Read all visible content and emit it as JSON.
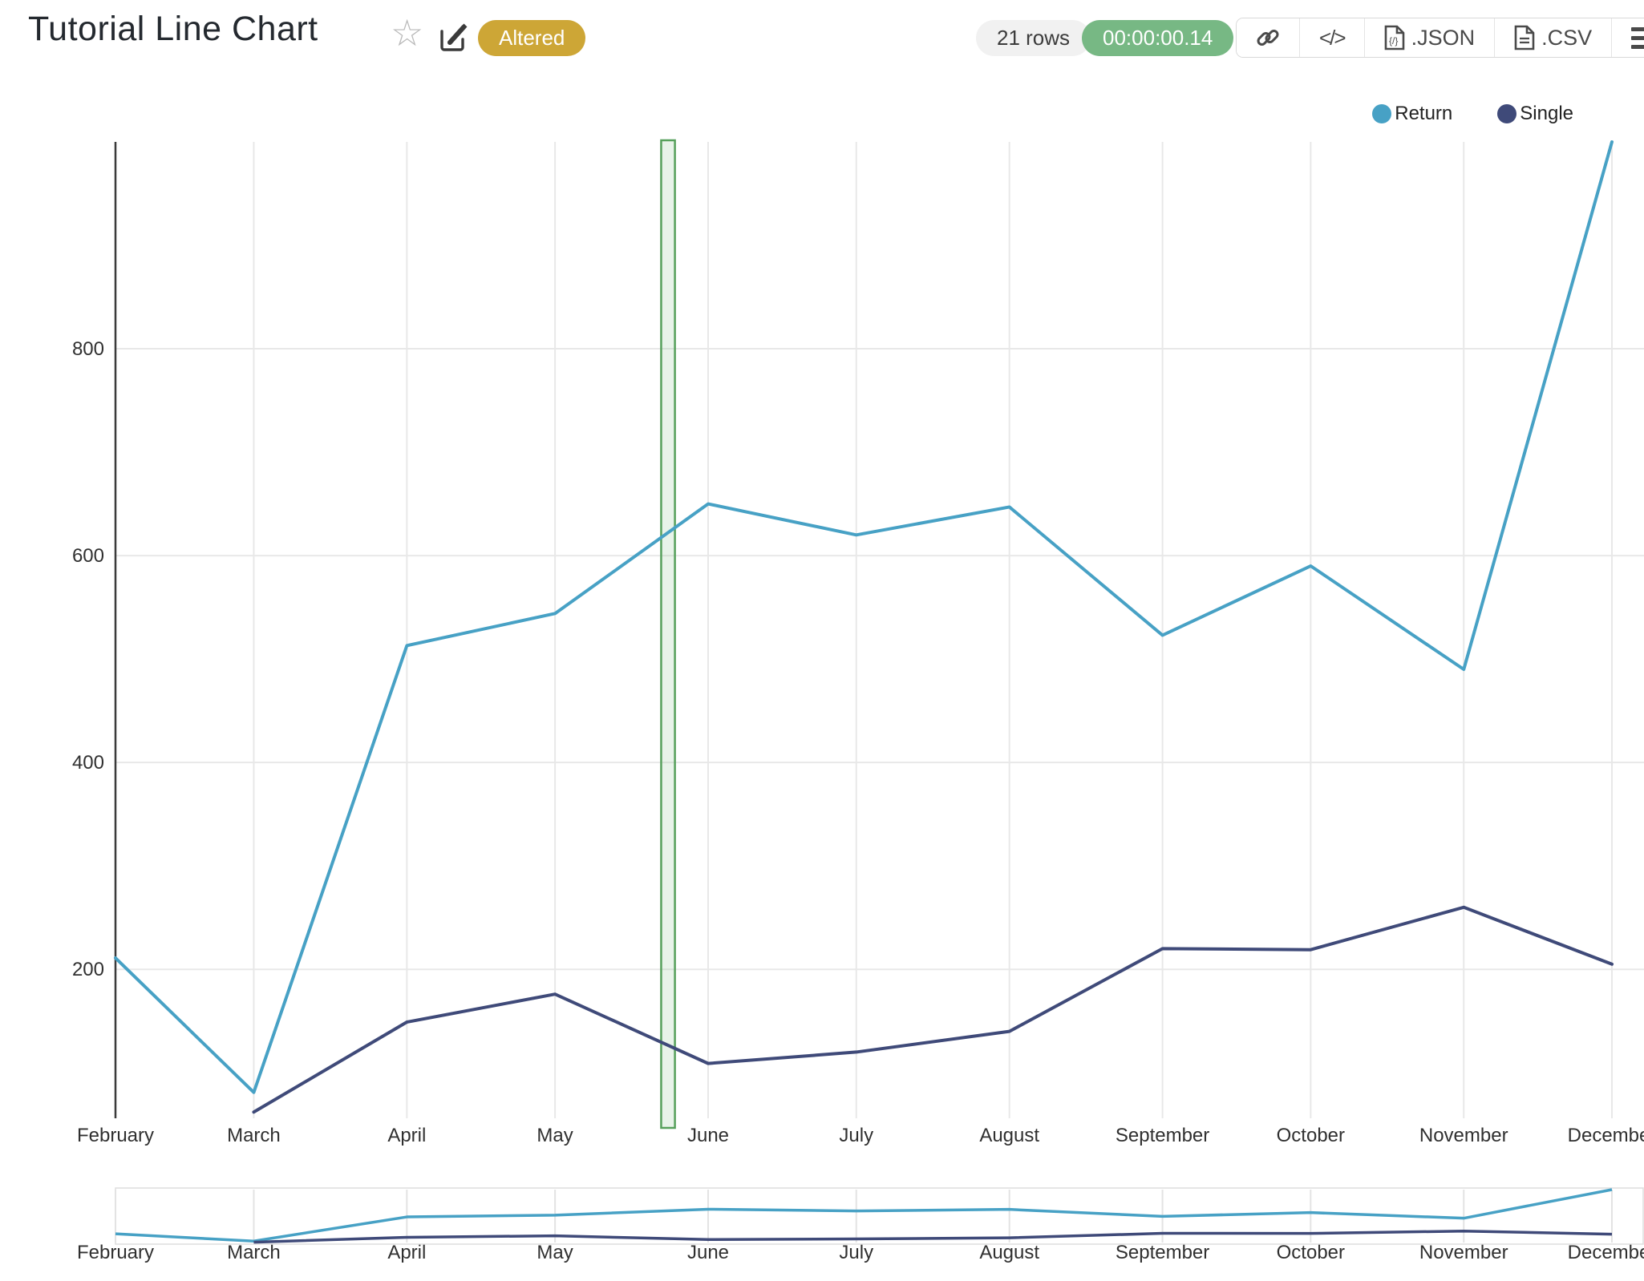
{
  "header": {
    "title": "Tutorial Line Chart",
    "status_badge": "Altered",
    "rows_badge": "21 rows",
    "runtime_badge": "00:00:00.14",
    "export_json_label": ".JSON",
    "export_csv_label": ".CSV"
  },
  "legend": [
    {
      "label": "Return",
      "color": "#47a1c5"
    },
    {
      "label": "Single",
      "color": "#3f4a79"
    }
  ],
  "chart_data": {
    "type": "line",
    "title": "Tutorial Line Chart",
    "x_axis_type": "monthly time axis (labels clipped at right edge)",
    "categories": [
      "February",
      "March",
      "April",
      "May",
      "June",
      "July",
      "August",
      "September",
      "October",
      "November",
      "December"
    ],
    "series": [
      {
        "name": "Return",
        "color": "#47a1c5",
        "values": [
          211,
          81,
          513,
          544,
          650,
          620,
          647,
          523,
          590,
          490,
          1000
        ]
      },
      {
        "name": "Single",
        "color": "#3f4a79",
        "values": [
          null,
          62,
          149,
          176,
          109,
          120,
          140,
          220,
          219,
          260,
          205
        ]
      }
    ],
    "xlabel": "",
    "ylabel": "",
    "yticks": [
      200,
      400,
      600,
      800
    ],
    "ylim": [
      56,
      1000
    ],
    "grid": true,
    "legend_position": "top-right",
    "axis_color": "#3b3b3b",
    "grid_color": "#e8e8e8",
    "tick_label_color": "#303030",
    "highlight_band": {
      "start_frac": 0.357,
      "end_frac": 0.366,
      "stroke": "#56a05b",
      "fill": "rgba(120,185,125,0.17)"
    },
    "range_slider": {
      "present": true,
      "border_color": "#dddddd"
    }
  }
}
